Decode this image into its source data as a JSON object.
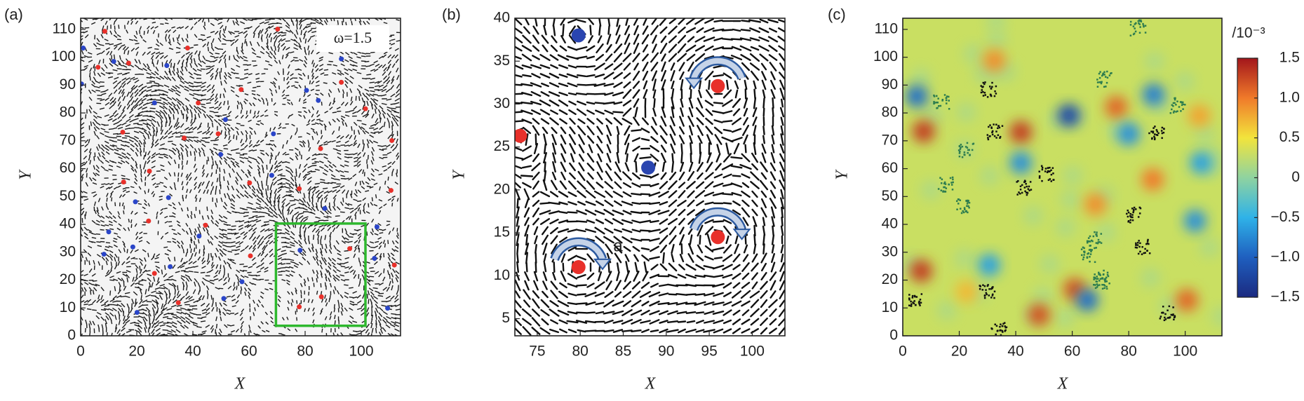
{
  "chart_data": [
    {
      "type": "scatter",
      "panel_label": "(a)",
      "annotation": "ω=1.5",
      "xlabel": "X",
      "ylabel": "Y",
      "xlim": [
        0,
        114
      ],
      "ylim": [
        0,
        114
      ],
      "xticks": [
        0,
        20,
        40,
        60,
        80,
        100
      ],
      "yticks": [
        0,
        10,
        20,
        30,
        40,
        50,
        60,
        70,
        80,
        90,
        100,
        110
      ],
      "series": [
        {
          "color": "#e8302a",
          "x": [
            8.6,
            17.1,
            6.2,
            41.9,
            57.2,
            49.0,
            36.9,
            15.0,
            24.5,
            15.3,
            24.2,
            44.5,
            60.2,
            77.9,
            101.5,
            92.9,
            85.5,
            110.9,
            110.6,
            95.9,
            111.8,
            77.9,
            26.3,
            34.8,
            60.5,
            85.8,
            70.2,
            38.1
          ],
          "values": [
            109.3,
            97.9,
            96.4,
            83.6,
            88.4,
            72.5,
            71.0,
            73.1,
            59.1,
            55.2,
            41.2,
            39.7,
            54.9,
            52.8,
            81.5,
            91.0,
            67.2,
            70.1,
            52.2,
            31.3,
            25.4,
            10.4,
            22.4,
            11.9,
            28.7,
            14.0,
            110.1,
            103.3
          ]
        },
        {
          "color": "#2a45c8",
          "x": [
            0.9,
            11.8,
            26.3,
            30.7,
            51.6,
            49.9,
            31.3,
            19.5,
            42.2,
            10.0,
            8.3,
            31.9,
            20.1,
            51.0,
            57.5,
            68.7,
            80.5,
            84.7,
            92.9,
            87.0,
            105.6,
            104.7,
            109.4,
            0.3,
            18.6,
            68.1,
            78.2
          ],
          "values": [
            103.3,
            98.5,
            83.6,
            97.0,
            77.6,
            65.1,
            49.6,
            48.1,
            35.8,
            37.3,
            29.3,
            24.8,
            8.4,
            13.4,
            19.4,
            72.5,
            88.1,
            84.5,
            99.4,
            45.7,
            39.1,
            27.8,
            9.9,
            90.4,
            31.9,
            57.6,
            30.7
          ]
        }
      ],
      "highlight": {
        "x": [
          69.6,
          101.5
        ],
        "y": [
          3.6,
          40.3
        ],
        "color": "#2eb82e"
      }
    },
    {
      "type": "scatter",
      "panel_label": "(b)",
      "annotation": "a",
      "xlabel": "X",
      "ylabel": "Y",
      "xlim": [
        72.4,
        103.8
      ],
      "ylim": [
        3,
        40
      ],
      "xticks": [
        75,
        80,
        85,
        90,
        95,
        100
      ],
      "yticks": [
        5,
        10,
        15,
        20,
        25,
        30,
        35,
        40
      ],
      "series": [
        {
          "color": "#e8302a",
          "x": [
            73.0,
            96.0,
            96.0,
            79.8
          ],
          "values": [
            26.3,
            32.1,
            14.5,
            11.0
          ]
        },
        {
          "color": "#2a45b0",
          "x": [
            79.8,
            87.9
          ],
          "values": [
            38.0,
            22.6
          ]
        }
      ]
    },
    {
      "type": "heatmap",
      "panel_label": "(c)",
      "xlabel": "X",
      "ylabel": "Y",
      "xlim": [
        0,
        113
      ],
      "ylim": [
        0,
        114
      ],
      "xticks": [
        0,
        20,
        40,
        60,
        80,
        100
      ],
      "yticks": [
        0,
        10,
        20,
        30,
        40,
        50,
        60,
        70,
        80,
        90,
        100,
        110
      ],
      "spots": {
        "x": [
          7.4,
          41.8,
          75.6,
          88.5,
          68.2,
          6.5,
          48.2,
          60.9,
          100.6,
          32.4,
          105.0,
          22.6,
          58.8,
          5.0,
          88.8,
          41.8,
          65.3,
          103.5,
          105.6,
          30.6,
          80.0
        ],
        "y": [
          73.4,
          73.1,
          82.1,
          56.1,
          47.2,
          23.3,
          7.5,
          16.7,
          12.8,
          98.8,
          79.0,
          15.8,
          79.1,
          86.0,
          86.6,
          62.1,
          12.8,
          41.2,
          62.1,
          25.4,
          72.5
        ],
        "values": [
          1.3,
          1.3,
          1.1,
          1.0,
          0.9,
          1.3,
          1.2,
          1.2,
          1.1,
          0.9,
          0.8,
          0.7,
          -1.2,
          -0.9,
          -0.8,
          -0.7,
          -0.9,
          -0.7,
          -0.6,
          -0.6,
          -0.7
        ]
      },
      "colorbar": {
        "label": "/10⁻³",
        "lim": [
          -1.5,
          1.5
        ],
        "ticks": [
          1.5,
          {
            "value": 1,
            "label": "1.0"
          },
          0.5,
          0,
          {
            "value": -0.5,
            "label": "−0.5"
          },
          {
            "value": -1,
            "label": "−1.0"
          },
          {
            "value": -1.5,
            "label": "−1.5"
          }
        ],
        "colors": [
          "#1b2a80",
          "#1f5fbf",
          "#2fb2e8",
          "#8fd3a0",
          "#f2e43c",
          "#f07a2a",
          "#a3161b"
        ]
      }
    }
  ]
}
